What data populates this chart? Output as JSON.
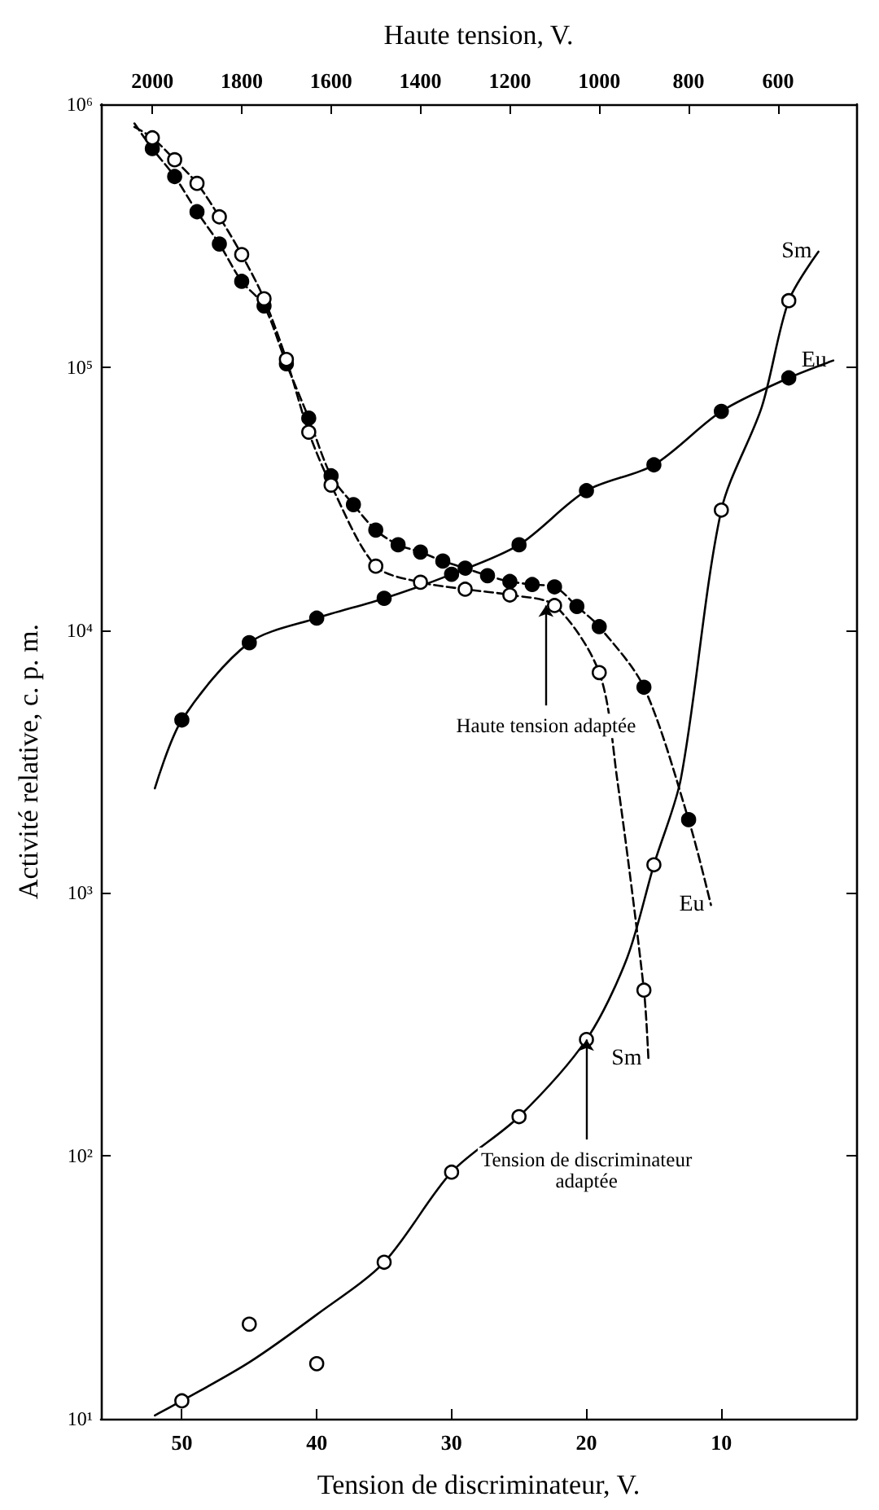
{
  "chart_data": {
    "type": "line",
    "xlabel": "Tension de discriminateur, V.",
    "x2label": "Haute tension, V.",
    "ylabel": "Activité relative, c. p. m.",
    "xlim": [
      56,
      0
    ],
    "xticks": [
      50,
      40,
      30,
      20,
      10
    ],
    "x2lim": [
      2115,
      425
    ],
    "x2ticks": [
      2000,
      1800,
      1600,
      1400,
      1200,
      1000,
      800,
      600
    ],
    "ylim": [
      10,
      1000000
    ],
    "log": "y",
    "yticks": [
      {
        "value": 10,
        "label": "10¹"
      },
      {
        "value": 100,
        "label": "10²"
      },
      {
        "value": 1000,
        "label": "10³"
      },
      {
        "value": 10000,
        "label": "10⁴"
      },
      {
        "value": 100000,
        "label": "10⁵"
      },
      {
        "value": 1000000,
        "label": "10⁶"
      }
    ],
    "grid": false,
    "series": [
      {
        "name": "Eu",
        "color": "#000000",
        "marker": "none",
        "line_style": "solid",
        "x": [
          52,
          50,
          45,
          40,
          35,
          30,
          25,
          20,
          15,
          10,
          5,
          1.7
        ],
        "values": [
          2500,
          4550,
          8950,
          11100,
          13200,
          16300,
          21100,
          33900,
          42500,
          67900,
          91000,
          106000
        ]
      },
      {
        "type": "scatter",
        "color": "#000000",
        "marker": "circle",
        "x": [
          50,
          45,
          40,
          35,
          30,
          25,
          20,
          15,
          10,
          5
        ],
        "values": [
          4550,
          8950,
          11100,
          13200,
          16300,
          21100,
          33900,
          42500,
          67900,
          91000
        ]
      },
      {
        "name": "Sm",
        "color": "#000000",
        "marker": "none",
        "line_style": "solid",
        "x": [
          52,
          50,
          45,
          40,
          35,
          30,
          25,
          20,
          17,
          15,
          13,
          10,
          7,
          5,
          2.8
        ],
        "values": [
          10.3,
          11.7,
          16.4,
          24.9,
          39.4,
          86.7,
          141,
          277,
          564,
          1280,
          2720,
          28600,
          70600,
          179000,
          275000
        ]
      },
      {
        "type": "scatter",
        "color": "#ffffff",
        "marker": "circle",
        "x": [
          50,
          45,
          40,
          35,
          30,
          25,
          20,
          15,
          10,
          5
        ],
        "values": [
          11.7,
          22.9,
          16.2,
          39.4,
          86.7,
          141,
          277,
          1280,
          28600,
          179000
        ]
      },
      {
        "name": "Eu",
        "axis": "x2",
        "color": "#000000",
        "marker": "none",
        "line_style": "dashed",
        "x": [
          2040,
          2000,
          1950,
          1900,
          1850,
          1800,
          1750,
          1700,
          1650,
          1600,
          1550,
          1500,
          1450,
          1400,
          1350,
          1300,
          1250,
          1200,
          1150,
          1100,
          1050,
          1000,
          900,
          800,
          750
        ],
        "values": [
          845000,
          678000,
          531000,
          390000,
          294000,
          212000,
          171000,
          103000,
          64000,
          38600,
          30000,
          24000,
          21100,
          19800,
          18300,
          17200,
          16100,
          15300,
          14900,
          14600,
          12300,
          10300,
          6060,
          1900,
          900
        ]
      },
      {
        "type": "scatter",
        "axis": "x2",
        "color": "#000000",
        "marker": "circle",
        "x": [
          2000,
          1950,
          1900,
          1850,
          1800,
          1750,
          1700,
          1650,
          1600,
          1550,
          1500,
          1450,
          1400,
          1350,
          1300,
          1250,
          1200,
          1150,
          1100,
          1050,
          1000,
          900,
          800
        ],
        "values": [
          678000,
          531000,
          390000,
          294000,
          212000,
          171000,
          103000,
          64000,
          38600,
          30000,
          24000,
          21100,
          19800,
          18300,
          17200,
          16100,
          15300,
          14900,
          14600,
          12300,
          10300,
          6060,
          1900
        ]
      },
      {
        "name": "Sm",
        "axis": "x2",
        "color": "#000000",
        "marker": "none",
        "line_style": "dashed",
        "x": [
          2040,
          2000,
          1950,
          1900,
          1850,
          1800,
          1750,
          1700,
          1650,
          1600,
          1500,
          1400,
          1300,
          1200,
          1100,
          1000,
          960,
          900,
          890
        ],
        "values": [
          820000,
          745000,
          615000,
          500000,
          373000,
          268000,
          182000,
          107000,
          56600,
          35600,
          17500,
          15200,
          14300,
          13600,
          12400,
          6890,
          2720,
          427,
          234
        ]
      },
      {
        "type": "scatter",
        "axis": "x2",
        "color": "#ffffff",
        "marker": "circle",
        "x": [
          2000,
          1950,
          1900,
          1850,
          1800,
          1750,
          1700,
          1650,
          1600,
          1500,
          1400,
          1300,
          1200,
          1100,
          1000,
          900
        ],
        "values": [
          745000,
          615000,
          500000,
          373000,
          268000,
          182000,
          107000,
          56600,
          35600,
          17500,
          15200,
          14300,
          13600,
          12400,
          6890,
          427
        ]
      }
    ],
    "annotations": [
      {
        "text": "Haute tension adaptée",
        "x": 23,
        "y": 12400
      },
      {
        "text": "Tension de discriminateur\nadaptée",
        "x": 20,
        "y": 277
      }
    ]
  }
}
